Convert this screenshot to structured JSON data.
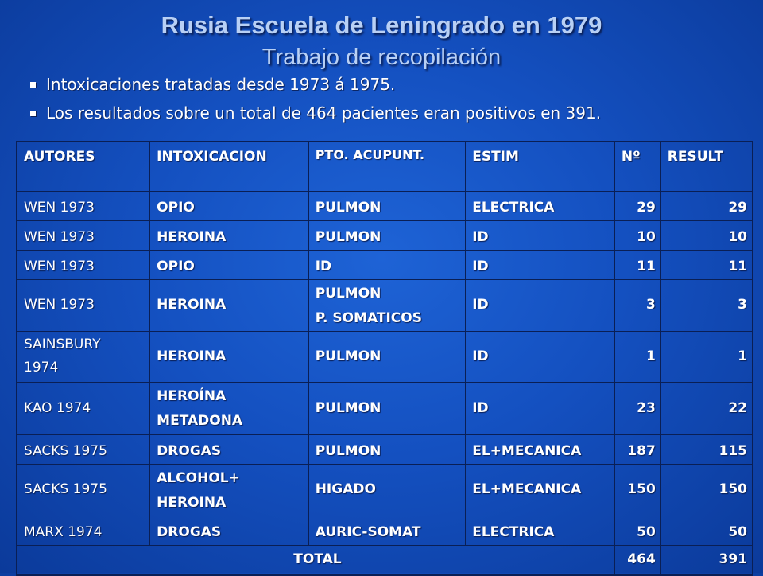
{
  "title": "Rusia Escuela de Leningrado en 1979",
  "subtitle": "Trabajo de recopilación",
  "bullets": [
    "Intoxicaciones tratadas desde 1973 á 1975.",
    "Los resultados sobre un total de 464 pacientes eran positivos en 391."
  ],
  "table": {
    "headers": [
      "AUTORES",
      "INTOXICACION",
      "PTO. ACUPUNT.",
      "ESTIM",
      "Nº",
      "RESULT"
    ],
    "rows": [
      {
        "autores": "WEN 1973",
        "intox": [
          "OPIO"
        ],
        "pto": [
          "PULMON"
        ],
        "estim": "ELECTRICA",
        "n": "29",
        "result": "29"
      },
      {
        "autores": "WEN 1973",
        "intox": [
          "HEROINA"
        ],
        "pto": [
          "PULMON"
        ],
        "estim": "ID",
        "n": "10",
        "result": "10"
      },
      {
        "autores": "WEN 1973",
        "intox": [
          "OPIO"
        ],
        "pto": [
          "ID"
        ],
        "estim": "ID",
        "n": "11",
        "result": "11"
      },
      {
        "autores": "WEN 1973",
        "intox": [
          "HEROINA"
        ],
        "pto": [
          "PULMON",
          "P. SOMATICOS"
        ],
        "estim": "ID",
        "n": "3",
        "result": "3"
      },
      {
        "autores": "SAINSBURY 1974",
        "intox": [
          "HEROINA"
        ],
        "pto": [
          "PULMON"
        ],
        "estim": "ID",
        "n": "1",
        "result": "1"
      },
      {
        "autores": "KAO 1974",
        "intox": [
          "HEROÍNA",
          "METADONA"
        ],
        "pto": [
          "PULMON"
        ],
        "estim": "ID",
        "n": "23",
        "result": "22"
      },
      {
        "autores": "SACKS 1975",
        "intox": [
          "DROGAS"
        ],
        "pto": [
          "PULMON"
        ],
        "estim": "EL+MECANICA",
        "n": "187",
        "result": "115"
      },
      {
        "autores": "SACKS 1975",
        "intox": [
          "ALCOHOL+",
          "HEROINA"
        ],
        "pto": [
          "HIGADO"
        ],
        "estim": "EL+MECANICA",
        "n": "150",
        "result": "150"
      },
      {
        "autores": "MARX 1974",
        "intox": [
          "DROGAS"
        ],
        "pto": [
          "AURIC-SOMAT"
        ],
        "estim": "ELECTRICA",
        "n": "50",
        "result": "50"
      }
    ],
    "total_label": "TOTAL",
    "total_n": "464",
    "total_result": "391"
  }
}
